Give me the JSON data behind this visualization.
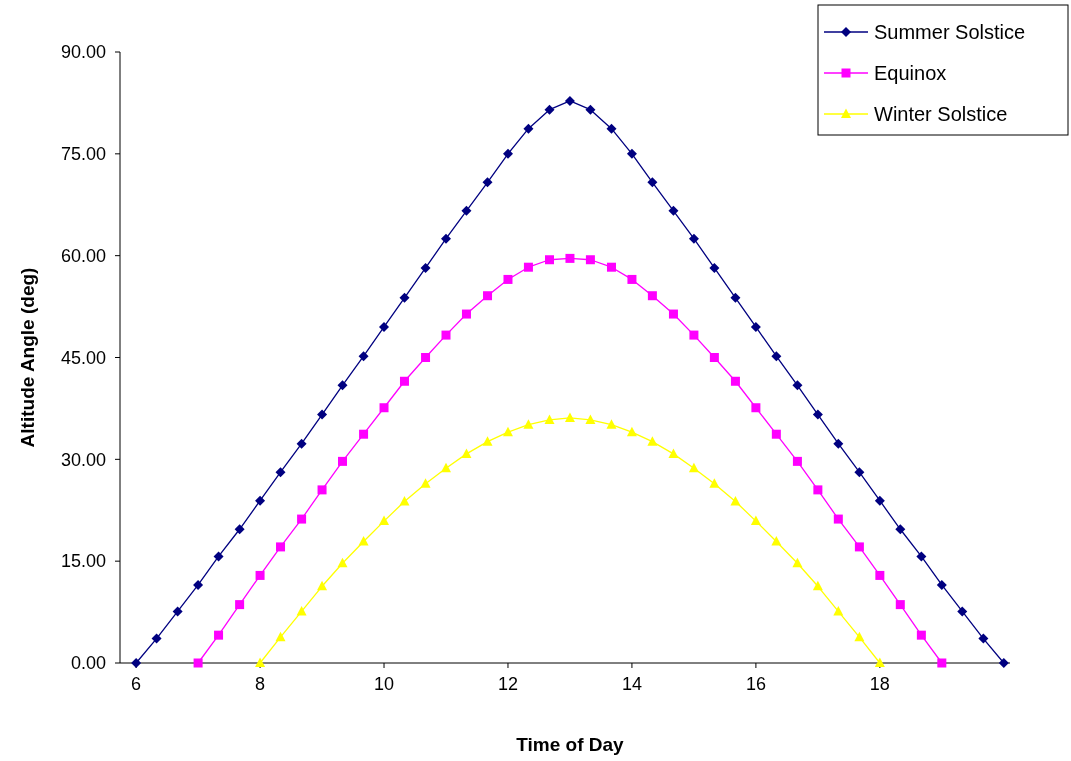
{
  "chart_data": {
    "type": "line",
    "xlabel": "Time of Day",
    "ylabel": "Altitude Angle (deg)",
    "xlim": [
      5.74,
      20.1
    ],
    "xticks": [
      6,
      8,
      10,
      12,
      14,
      16,
      18
    ],
    "ylim": [
      0,
      90
    ],
    "yticks": [
      {
        "value": 0,
        "label": "0.00"
      },
      {
        "value": 15,
        "label": "15.00"
      },
      {
        "value": 30,
        "label": "30.00"
      },
      {
        "value": 45,
        "label": "45.00"
      },
      {
        "value": 60,
        "label": "60.00"
      },
      {
        "value": 75,
        "label": "75.00"
      },
      {
        "value": 90,
        "label": "90.00"
      }
    ],
    "grid": false,
    "legend": "top right",
    "line_style": "solid",
    "series": [
      {
        "name": "Summer Solstice",
        "color": "#000080",
        "marker": "diamond",
        "x": [
          6,
          6.33,
          6.67,
          7,
          7.33,
          7.67,
          8,
          8.33,
          8.67,
          9,
          9.33,
          9.67,
          10,
          10.33,
          10.67,
          11,
          11.33,
          11.67,
          12,
          12.33,
          12.67,
          13,
          13.33,
          13.67,
          14,
          14.33,
          14.67,
          15,
          15.33,
          15.67,
          16,
          16.33,
          16.67,
          17,
          17.33,
          17.67,
          18,
          18.33,
          18.67,
          19,
          19.33,
          19.67,
          20
        ],
        "values": [
          0,
          3.6,
          7.6,
          11.5,
          15.7,
          19.7,
          23.9,
          28.1,
          32.3,
          36.6,
          40.9,
          45.2,
          49.5,
          53.8,
          58.2,
          62.5,
          66.6,
          70.8,
          75.0,
          78.7,
          81.5,
          82.8,
          81.5,
          78.7,
          75.0,
          70.8,
          66.6,
          62.5,
          58.2,
          53.8,
          49.5,
          45.2,
          40.9,
          36.6,
          32.3,
          28.1,
          23.9,
          19.7,
          15.7,
          11.5,
          7.6,
          3.6,
          0
        ]
      },
      {
        "name": "Equinox",
        "color": "#ff00ff",
        "marker": "square",
        "x": [
          7,
          7.33,
          7.67,
          8,
          8.33,
          8.67,
          9,
          9.33,
          9.67,
          10,
          10.33,
          10.67,
          11,
          11.33,
          11.67,
          12,
          12.33,
          12.67,
          13,
          13.33,
          13.67,
          14,
          14.33,
          14.67,
          15,
          15.33,
          15.67,
          16,
          16.33,
          16.67,
          17,
          17.33,
          17.67,
          18,
          18.33,
          18.67,
          19
        ],
        "values": [
          0,
          4.1,
          8.6,
          12.9,
          17.1,
          21.2,
          25.5,
          29.7,
          33.7,
          37.6,
          41.5,
          45.0,
          48.3,
          51.4,
          54.1,
          56.5,
          58.3,
          59.4,
          59.6,
          59.4,
          58.3,
          56.5,
          54.1,
          51.4,
          48.3,
          45.0,
          41.5,
          37.6,
          33.7,
          29.7,
          25.5,
          21.2,
          17.1,
          12.9,
          8.6,
          4.1,
          0
        ]
      },
      {
        "name": "Winter Solstice",
        "color": "#ffff00",
        "marker": "triangle",
        "x": [
          8,
          8.33,
          8.67,
          9,
          9.33,
          9.67,
          10,
          10.33,
          10.67,
          11,
          11.33,
          11.67,
          12,
          12.33,
          12.67,
          13,
          13.33,
          13.67,
          14,
          14.33,
          14.67,
          15,
          15.33,
          15.67,
          16,
          16.33,
          16.67,
          17,
          17.33,
          17.67,
          18
        ],
        "values": [
          0,
          3.8,
          7.6,
          11.3,
          14.7,
          17.9,
          20.9,
          23.8,
          26.4,
          28.7,
          30.8,
          32.6,
          34.0,
          35.1,
          35.8,
          36.1,
          35.8,
          35.1,
          34.0,
          32.6,
          30.8,
          28.7,
          26.4,
          23.8,
          20.9,
          17.9,
          14.7,
          11.3,
          7.6,
          3.8,
          0
        ]
      }
    ]
  }
}
